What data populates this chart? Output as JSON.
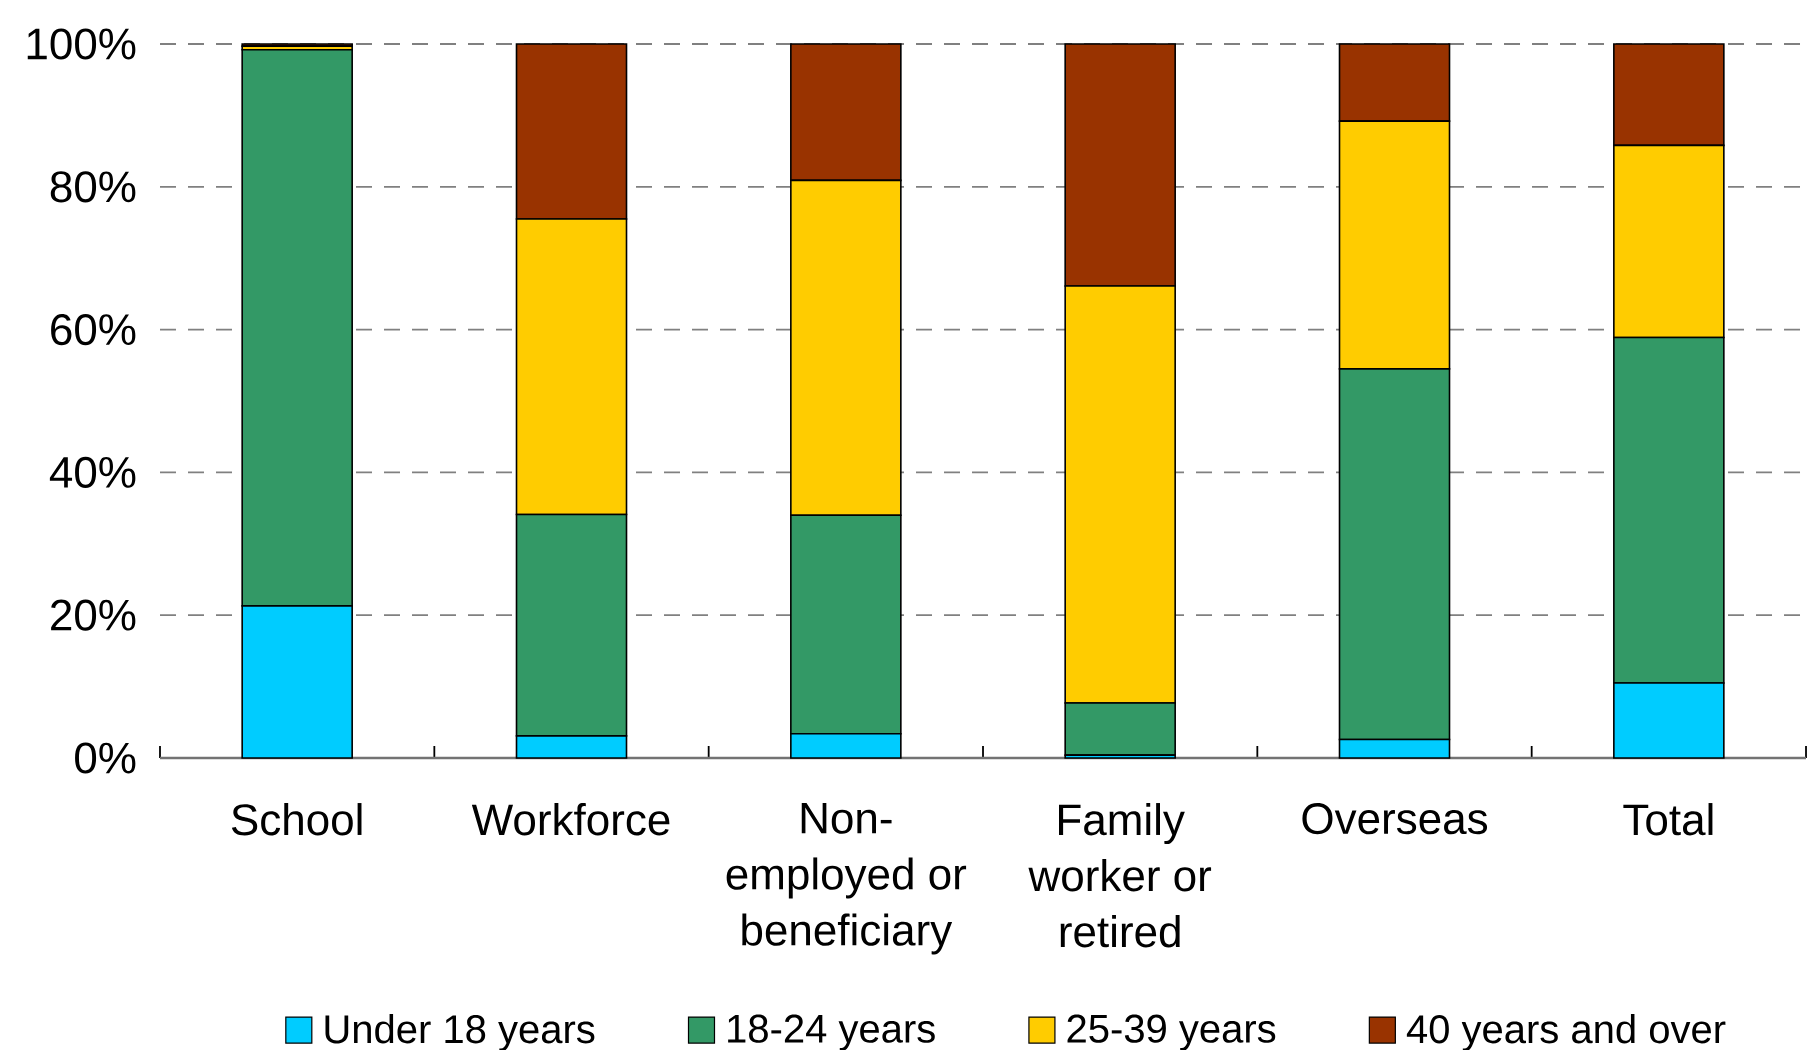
{
  "chart_data": {
    "type": "bar",
    "stacked": true,
    "categories": [
      "School",
      "Workforce",
      "Non-employed or beneficiary",
      "Family worker or retired",
      "Overseas",
      "Total"
    ],
    "series": [
      {
        "name": "Under 18 years",
        "color": "#00ccff",
        "values": [
          21.3,
          3.1,
          3.4,
          0.4,
          2.6,
          10.5
        ]
      },
      {
        "name": "18-24 years",
        "color": "#339966",
        "values": [
          77.9,
          31.0,
          30.6,
          7.3,
          51.9,
          48.4
        ]
      },
      {
        "name": "25-39 years",
        "color": "#ffcc00",
        "values": [
          0.5,
          41.4,
          46.9,
          58.4,
          34.7,
          26.9
        ]
      },
      {
        "name": "40 years and over",
        "color": "#993300",
        "values": [
          0.3,
          24.5,
          19.1,
          33.9,
          10.8,
          14.2
        ]
      }
    ],
    "ylim": [
      0,
      100
    ],
    "yticks": [
      {
        "value": 0,
        "label": "0%"
      },
      {
        "value": 20,
        "label": "20%"
      },
      {
        "value": 40,
        "label": "40%"
      },
      {
        "value": 60,
        "label": "60%"
      },
      {
        "value": 80,
        "label": "80%"
      },
      {
        "value": 100,
        "label": "100%"
      }
    ],
    "grid": "y",
    "legend": "bottom"
  }
}
